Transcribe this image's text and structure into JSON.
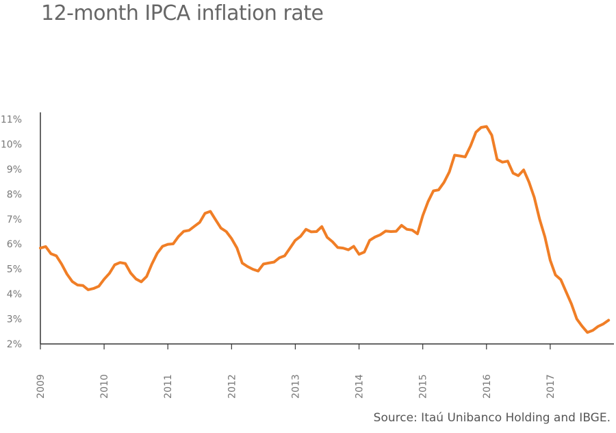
{
  "chart_data": {
    "type": "line",
    "title": "12-month IPCA inflation rate",
    "xlabel": "",
    "ylabel": "",
    "x_ticks": [
      "2009",
      "2010",
      "2011",
      "2012",
      "2013",
      "2014",
      "2015",
      "2016",
      "2017"
    ],
    "y_ticks": [
      "2%",
      "3%",
      "4%",
      "5%",
      "6%",
      "7%",
      "8%",
      "9%",
      "10%",
      "11%"
    ],
    "ylim": [
      2,
      11
    ],
    "xlim": [
      "2009-01",
      "2017-12"
    ],
    "grid": false,
    "series_color": "#f07e26",
    "series": [
      {
        "x": [
          "2009-01",
          "2009-02",
          "2009-03",
          "2009-04",
          "2009-05",
          "2009-06",
          "2009-07",
          "2009-08",
          "2009-09",
          "2009-10",
          "2009-11",
          "2009-12",
          "2010-01",
          "2010-02",
          "2010-03",
          "2010-04",
          "2010-05",
          "2010-06",
          "2010-07",
          "2010-08",
          "2010-09",
          "2010-10",
          "2010-11",
          "2010-12",
          "2011-01",
          "2011-02",
          "2011-03",
          "2011-04",
          "2011-05",
          "2011-06",
          "2011-07",
          "2011-08",
          "2011-09",
          "2011-10",
          "2011-11",
          "2011-12",
          "2012-01",
          "2012-02",
          "2012-03",
          "2012-04",
          "2012-05",
          "2012-06",
          "2012-07",
          "2012-08",
          "2012-09",
          "2012-10",
          "2012-11",
          "2012-12",
          "2013-01",
          "2013-02",
          "2013-03",
          "2013-04",
          "2013-05",
          "2013-06",
          "2013-07",
          "2013-08",
          "2013-09",
          "2013-10",
          "2013-11",
          "2013-12",
          "2014-01",
          "2014-02",
          "2014-03",
          "2014-04",
          "2014-05",
          "2014-06",
          "2014-07",
          "2014-08",
          "2014-09",
          "2014-10",
          "2014-11",
          "2014-12",
          "2015-01",
          "2015-02",
          "2015-03",
          "2015-04",
          "2015-05",
          "2015-06",
          "2015-07",
          "2015-08",
          "2015-09",
          "2015-10",
          "2015-11",
          "2015-12",
          "2016-01",
          "2016-02",
          "2016-03",
          "2016-04",
          "2016-05",
          "2016-06",
          "2016-07",
          "2016-08",
          "2016-09",
          "2016-10",
          "2016-11",
          "2016-12",
          "2017-01",
          "2017-02",
          "2017-03",
          "2017-04",
          "2017-05",
          "2017-06",
          "2017-07",
          "2017-08",
          "2017-09",
          "2017-10",
          "2017-11",
          "2017-12"
        ],
        "values": [
          5.84,
          5.9,
          5.61,
          5.53,
          5.2,
          4.8,
          4.5,
          4.36,
          4.34,
          4.17,
          4.22,
          4.31,
          4.59,
          4.83,
          5.17,
          5.26,
          5.22,
          4.84,
          4.6,
          4.49,
          4.7,
          5.2,
          5.63,
          5.91,
          5.99,
          6.01,
          6.3,
          6.51,
          6.55,
          6.71,
          6.87,
          7.23,
          7.31,
          6.97,
          6.64,
          6.5,
          6.22,
          5.85,
          5.24,
          5.1,
          4.99,
          4.92,
          5.2,
          5.24,
          5.28,
          5.45,
          5.53,
          5.84,
          6.15,
          6.31,
          6.59,
          6.49,
          6.5,
          6.7,
          6.27,
          6.09,
          5.86,
          5.84,
          5.77,
          5.91,
          5.59,
          5.68,
          6.15,
          6.28,
          6.37,
          6.52,
          6.5,
          6.51,
          6.75,
          6.59,
          6.56,
          6.41,
          7.14,
          7.7,
          8.13,
          8.17,
          8.47,
          8.89,
          9.56,
          9.53,
          9.49,
          9.93,
          10.48,
          10.67,
          10.71,
          10.36,
          9.39,
          9.28,
          9.32,
          8.84,
          8.74,
          8.97,
          8.48,
          7.87,
          6.99,
          6.29,
          5.35,
          4.76,
          4.57,
          4.08,
          3.6,
          3.0,
          2.71,
          2.46,
          2.54,
          2.7,
          2.8,
          2.95
        ]
      }
    ]
  },
  "source": "Source: Itaú Unibanco Holding and IBGE."
}
